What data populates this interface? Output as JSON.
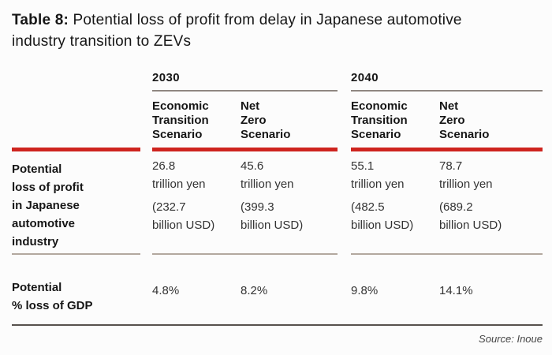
{
  "title": {
    "prefix": "Table 8:",
    "line1_rest": "Potential loss of profit from delay in Japanese automotive",
    "line2": "industry transition to ZEVs"
  },
  "colors": {
    "accent_red": "#ce241f",
    "year_rule": "#8f8781",
    "row_rule": "#b3a89f",
    "bottom_rule": "#57514d"
  },
  "header": {
    "year_groups": [
      {
        "label": "2030"
      },
      {
        "label": "2040"
      }
    ],
    "scenarios": [
      {
        "lines": [
          "Economic",
          "Transition",
          "Scenario"
        ]
      },
      {
        "lines": [
          "Net",
          "Zero",
          "Scenario"
        ]
      },
      {
        "lines": [
          "Economic",
          "Transition",
          "Scenario"
        ]
      },
      {
        "lines": [
          "Net",
          "Zero",
          "Scenario"
        ]
      }
    ]
  },
  "rows": [
    {
      "label_lines": [
        "Potential",
        "loss of profit",
        "in Japanese",
        "automotive",
        "industry"
      ],
      "cells": [
        {
          "yen": [
            "26.8",
            "trillion yen"
          ],
          "usd": [
            "(232.7",
            "billion USD)"
          ]
        },
        {
          "yen": [
            "45.6",
            "trillion yen"
          ],
          "usd": [
            "(399.3",
            "billion USD)"
          ]
        },
        {
          "yen": [
            "55.1",
            "trillion yen"
          ],
          "usd": [
            "(482.5",
            "billion USD)"
          ]
        },
        {
          "yen": [
            "78.7",
            "trillion yen"
          ],
          "usd": [
            "(689.2",
            "billion USD)"
          ]
        }
      ]
    },
    {
      "label_lines": [
        "Potential",
        "% loss of GDP"
      ],
      "cells": [
        {
          "value": "4.8%"
        },
        {
          "value": "8.2%"
        },
        {
          "value": "9.8%"
        },
        {
          "value": "14.1%"
        }
      ]
    }
  ],
  "footer": {
    "source": "Source: Inoue"
  },
  "chart_data": {
    "type": "table",
    "title": "Table 8: Potential loss of profit from delay in Japanese automotive industry transition to ZEVs",
    "column_groups": [
      "2030",
      "2040"
    ],
    "columns": [
      "2030 Economic Transition Scenario",
      "2030 Net Zero Scenario",
      "2040 Economic Transition Scenario",
      "2040 Net Zero Scenario"
    ],
    "rows": [
      {
        "label": "Potential loss of profit in Japanese automotive industry",
        "values": [
          "26.8 trillion yen (232.7 billion USD)",
          "45.6 trillion yen (399.3 billion USD)",
          "55.1 trillion yen (482.5 billion USD)",
          "78.7 trillion yen (689.2 billion USD)"
        ]
      },
      {
        "label": "Potential % loss of GDP",
        "values": [
          "4.8%",
          "8.2%",
          "9.8%",
          "14.1%"
        ]
      }
    ],
    "source": "Source: Inoue"
  }
}
